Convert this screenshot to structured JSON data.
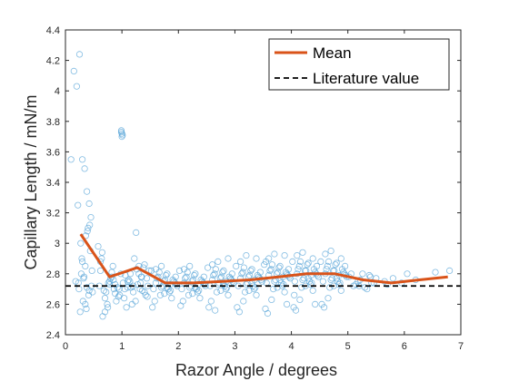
{
  "chart_data": {
    "type": "scatter",
    "xlabel": "Razor Angle / degrees",
    "ylabel": "Capillary Length / mN/m",
    "xlim": [
      0,
      7
    ],
    "ylim": [
      2.4,
      4.4
    ],
    "x_ticks": [
      "0",
      "1",
      "2",
      "3",
      "4",
      "5",
      "6",
      "7"
    ],
    "y_ticks": [
      "2.4",
      "2.6",
      "2.8",
      "3",
      "3.2",
      "3.4",
      "3.6",
      "3.8",
      "4",
      "4.2",
      "4.4"
    ],
    "grid": false,
    "legend_position": "top-right",
    "legend": [
      "Mean",
      "Literature value"
    ],
    "colors": {
      "scatter": "#5aa6d8",
      "mean": "#d95319",
      "literature": "#000000"
    },
    "literature_value": 2.72,
    "mean": {
      "name": "Mean",
      "x": [
        0.27,
        0.78,
        1.27,
        1.77,
        2.27,
        2.77,
        3.27,
        3.77,
        4.27,
        4.77,
        5.27,
        5.77,
        6.27,
        6.77
      ],
      "y": [
        3.06,
        2.78,
        2.84,
        2.74,
        2.74,
        2.75,
        2.76,
        2.78,
        2.8,
        2.8,
        2.76,
        2.74,
        2.76,
        2.78
      ]
    },
    "scatter": {
      "x": [
        0.1,
        0.15,
        0.2,
        0.25,
        0.3,
        0.34,
        0.38,
        0.42,
        0.45,
        0.18,
        0.28,
        0.36,
        0.46,
        0.24,
        0.33,
        0.4,
        0.43,
        0.31,
        0.26,
        0.48,
        0.37,
        0.22,
        0.35,
        0.29,
        0.39,
        0.44,
        0.32,
        0.27,
        0.41,
        0.47,
        0.23,
        0.38,
        0.35,
        0.3,
        0.42,
        0.58,
        0.62,
        0.66,
        0.7,
        0.74,
        0.78,
        0.82,
        0.86,
        0.9,
        0.94,
        0.98,
        0.6,
        0.68,
        0.76,
        0.84,
        0.92,
        0.65,
        0.72,
        0.8,
        0.88,
        0.96,
        0.64,
        0.75,
        0.85,
        0.95,
        0.7,
        0.82,
        0.88,
        0.62,
        0.78,
        0.99,
        1.0,
        1.01,
        0.99,
        1.0,
        1.05,
        1.1,
        1.15,
        1.2,
        1.25,
        1.3,
        1.35,
        1.4,
        1.45,
        1.48,
        1.02,
        1.08,
        1.12,
        1.18,
        1.22,
        1.28,
        1.32,
        1.38,
        1.42,
        1.46,
        1.06,
        1.16,
        1.26,
        1.36,
        1.44,
        1.04,
        1.14,
        1.24,
        1.34,
        1.4,
        1.33,
        1.2,
        1.1,
        1.3,
        1.52,
        1.56,
        1.6,
        1.64,
        1.68,
        1.72,
        1.76,
        1.8,
        1.84,
        1.88,
        1.92,
        1.96,
        1.54,
        1.62,
        1.7,
        1.78,
        1.86,
        1.94,
        1.58,
        1.66,
        1.74,
        1.82,
        1.9,
        1.98,
        1.6,
        1.75,
        1.85,
        1.95,
        1.7,
        1.8,
        2.02,
        2.06,
        2.1,
        2.14,
        2.18,
        2.22,
        2.26,
        2.3,
        2.34,
        2.38,
        2.42,
        2.46,
        2.04,
        2.12,
        2.2,
        2.28,
        2.36,
        2.44,
        2.08,
        2.16,
        2.24,
        2.32,
        2.4,
        2.48,
        2.1,
        2.25,
        2.35,
        2.45,
        2.2,
        2.3,
        2.52,
        2.56,
        2.6,
        2.64,
        2.68,
        2.72,
        2.76,
        2.8,
        2.84,
        2.88,
        2.92,
        2.96,
        2.54,
        2.62,
        2.7,
        2.78,
        2.86,
        2.94,
        2.58,
        2.66,
        2.74,
        2.82,
        2.9,
        2.98,
        2.6,
        2.75,
        2.85,
        2.95,
        2.7,
        2.8,
        2.65,
        2.88,
        3.02,
        3.06,
        3.1,
        3.14,
        3.18,
        3.22,
        3.26,
        3.3,
        3.34,
        3.38,
        3.42,
        3.46,
        3.04,
        3.12,
        3.2,
        3.28,
        3.36,
        3.44,
        3.08,
        3.16,
        3.24,
        3.32,
        3.4,
        3.48,
        3.1,
        3.25,
        3.35,
        3.45,
        3.2,
        3.3,
        3.15,
        3.38,
        3.52,
        3.56,
        3.6,
        3.64,
        3.68,
        3.72,
        3.76,
        3.8,
        3.84,
        3.88,
        3.92,
        3.96,
        3.54,
        3.62,
        3.7,
        3.78,
        3.86,
        3.94,
        3.58,
        3.66,
        3.74,
        3.82,
        3.9,
        3.98,
        3.6,
        3.75,
        3.85,
        3.95,
        3.7,
        3.8,
        3.65,
        3.88,
        3.55,
        3.92,
        4.02,
        4.06,
        4.1,
        4.14,
        4.18,
        4.22,
        4.26,
        4.3,
        4.34,
        4.38,
        4.42,
        4.46,
        4.04,
        4.12,
        4.2,
        4.28,
        4.36,
        4.44,
        4.08,
        4.16,
        4.24,
        4.32,
        4.4,
        4.48,
        4.1,
        4.25,
        4.35,
        4.45,
        4.2,
        4.3,
        4.15,
        4.38,
        4.05,
        4.42,
        4.52,
        4.56,
        4.6,
        4.64,
        4.68,
        4.72,
        4.76,
        4.8,
        4.84,
        4.88,
        4.92,
        4.96,
        4.54,
        4.62,
        4.7,
        4.78,
        4.86,
        4.94,
        4.58,
        4.66,
        4.74,
        4.82,
        4.9,
        4.98,
        4.6,
        4.75,
        4.85,
        4.95,
        4.7,
        4.8,
        4.65,
        4.88,
        5.02,
        5.1,
        5.18,
        5.26,
        5.34,
        5.42,
        5.5,
        5.06,
        5.14,
        5.22,
        5.3,
        5.38,
        5.46,
        5.2,
        5.4,
        5.65,
        5.8,
        5.95,
        6.05,
        6.2,
        6.55,
        6.8,
        5.7
      ],
      "y": [
        3.55,
        4.13,
        4.03,
        4.24,
        3.55,
        3.49,
        3.34,
        3.26,
        3.17,
        2.75,
        2.8,
        3.05,
        2.72,
        2.7,
        2.78,
        3.1,
        3.12,
        2.62,
        2.55,
        2.68,
        2.57,
        3.25,
        2.85,
        2.9,
        3.08,
        2.95,
        2.77,
        3.0,
        2.66,
        2.82,
        2.74,
        2.71,
        2.6,
        2.88,
        2.69,
        2.98,
        2.82,
        2.52,
        2.55,
        2.6,
        2.75,
        2.78,
        2.7,
        2.62,
        2.65,
        2.8,
        2.72,
        2.69,
        2.74,
        2.85,
        2.71,
        2.94,
        2.68,
        2.77,
        2.73,
        2.66,
        2.9,
        2.58,
        2.76,
        2.7,
        2.64,
        2.81,
        2.67,
        2.88,
        2.73,
        3.73,
        3.72,
        3.71,
        3.74,
        3.7,
        2.7,
        2.75,
        2.8,
        2.72,
        3.07,
        2.85,
        2.78,
        2.68,
        2.65,
        2.82,
        2.74,
        2.58,
        2.76,
        2.6,
        2.9,
        2.73,
        2.7,
        2.84,
        2.66,
        2.72,
        2.79,
        2.71,
        2.83,
        2.69,
        2.77,
        2.64,
        2.75,
        2.62,
        2.78,
        2.86,
        2.74,
        2.68,
        2.71,
        2.8,
        2.82,
        2.7,
        2.74,
        2.78,
        2.66,
        2.72,
        2.76,
        2.8,
        2.68,
        2.64,
        2.75,
        2.73,
        2.58,
        2.77,
        2.71,
        2.79,
        2.69,
        2.74,
        2.62,
        2.81,
        2.75,
        2.7,
        2.76,
        2.72,
        2.83,
        2.67,
        2.73,
        2.78,
        2.85,
        2.71,
        2.82,
        2.7,
        2.74,
        2.78,
        2.66,
        2.72,
        2.76,
        2.8,
        2.68,
        2.64,
        2.75,
        2.73,
        2.59,
        2.77,
        2.71,
        2.79,
        2.69,
        2.74,
        2.62,
        2.81,
        2.75,
        2.7,
        2.76,
        2.72,
        2.83,
        2.67,
        2.73,
        2.78,
        2.85,
        2.71,
        2.84,
        2.72,
        2.76,
        2.8,
        2.68,
        2.74,
        2.78,
        2.82,
        2.7,
        2.66,
        2.77,
        2.75,
        2.58,
        2.79,
        2.73,
        2.81,
        2.71,
        2.76,
        2.62,
        2.83,
        2.77,
        2.72,
        2.78,
        2.74,
        2.86,
        2.69,
        2.75,
        2.8,
        2.88,
        2.73,
        2.56,
        2.9,
        2.85,
        2.72,
        2.77,
        2.81,
        2.68,
        2.74,
        2.79,
        2.83,
        2.7,
        2.66,
        2.78,
        2.76,
        2.58,
        2.8,
        2.73,
        2.82,
        2.71,
        2.77,
        2.55,
        2.84,
        2.78,
        2.72,
        2.79,
        2.75,
        2.88,
        2.69,
        2.76,
        2.81,
        2.92,
        2.74,
        2.62,
        2.9,
        2.86,
        2.74,
        2.79,
        2.83,
        2.7,
        2.76,
        2.81,
        2.85,
        2.72,
        2.68,
        2.8,
        2.78,
        2.57,
        2.82,
        2.75,
        2.84,
        2.73,
        2.79,
        2.54,
        2.86,
        2.8,
        2.74,
        2.81,
        2.77,
        2.9,
        2.71,
        2.78,
        2.83,
        2.93,
        2.76,
        2.63,
        2.92,
        2.88,
        2.6,
        2.88,
        2.75,
        2.8,
        2.85,
        2.71,
        2.77,
        2.82,
        2.87,
        2.73,
        2.69,
        2.81,
        2.79,
        2.58,
        2.83,
        2.76,
        2.86,
        2.74,
        2.8,
        2.56,
        2.88,
        2.82,
        2.75,
        2.83,
        2.78,
        2.92,
        2.72,
        2.79,
        2.85,
        2.94,
        2.77,
        2.63,
        2.9,
        2.66,
        2.6,
        2.88,
        2.75,
        2.8,
        2.85,
        2.71,
        2.77,
        2.82,
        2.87,
        2.73,
        2.69,
        2.81,
        2.79,
        2.6,
        2.83,
        2.76,
        2.86,
        2.74,
        2.8,
        2.58,
        2.88,
        2.82,
        2.75,
        2.83,
        2.78,
        2.93,
        2.72,
        2.79,
        2.85,
        2.95,
        2.77,
        2.64,
        2.9,
        2.78,
        2.72,
        2.75,
        2.8,
        2.7,
        2.74,
        2.77,
        2.8,
        2.73,
        2.76,
        2.71,
        2.79,
        2.74,
        2.72,
        2.78,
        2.75,
        2.77,
        2.74,
        2.8,
        2.76,
        2.81,
        2.82,
        2.73
      ]
    }
  }
}
